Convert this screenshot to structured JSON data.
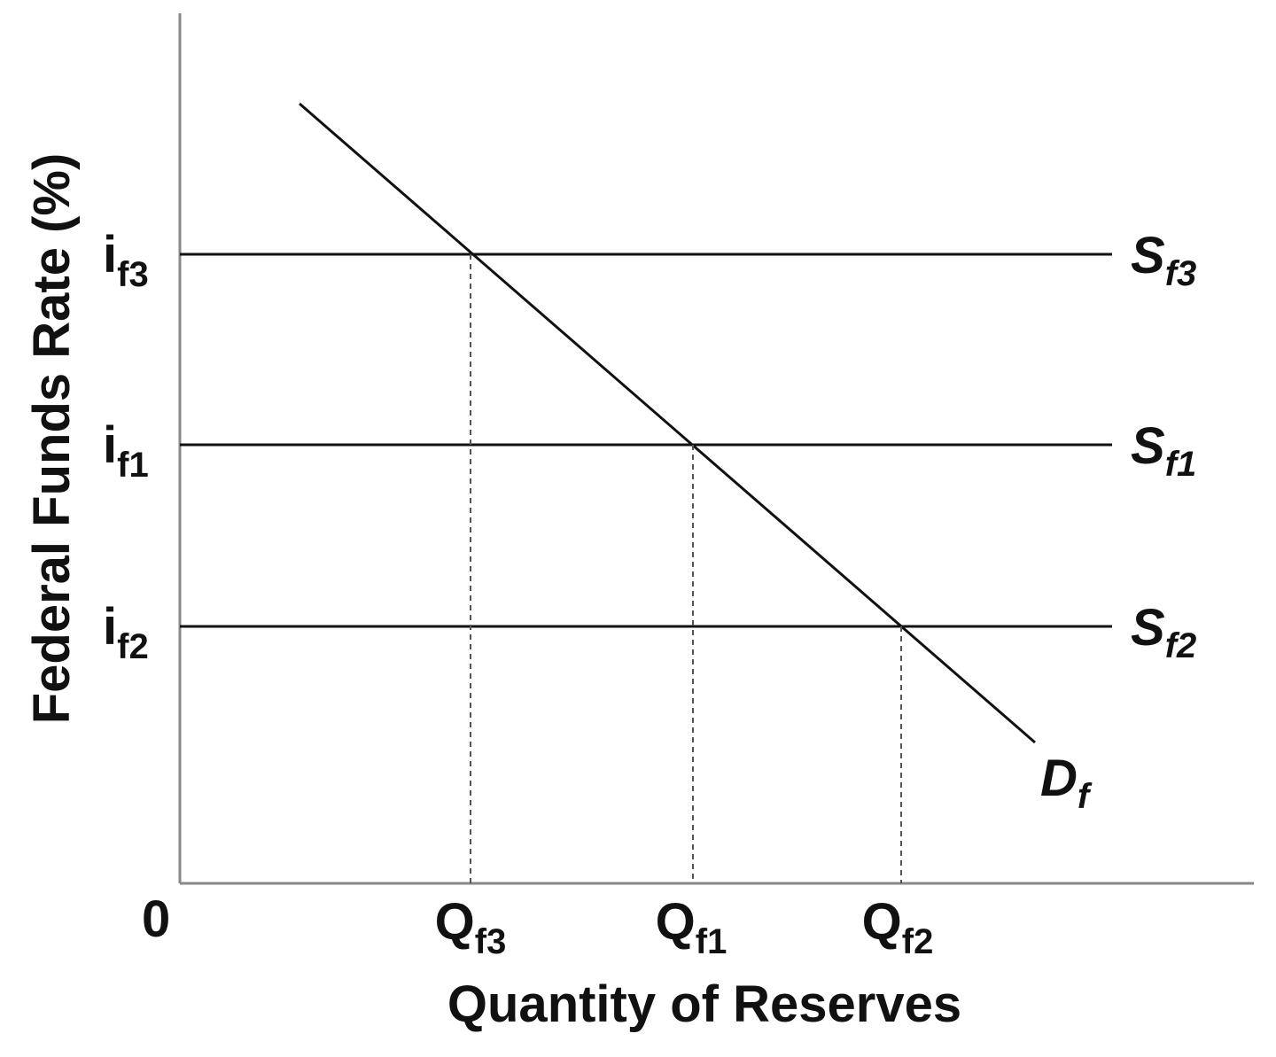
{
  "y_axis": {
    "title": "Federal Funds Rate (%)",
    "origin": "0",
    "labels": [
      {
        "main": "i",
        "sub": "f3"
      },
      {
        "main": "i",
        "sub": "f1"
      },
      {
        "main": "i",
        "sub": "f2"
      }
    ]
  },
  "x_axis": {
    "title": "Quantity of Reserves",
    "labels": [
      {
        "main": "Q",
        "sub": "f3"
      },
      {
        "main": "Q",
        "sub": "f1"
      },
      {
        "main": "Q",
        "sub": "f2"
      }
    ]
  },
  "curves": {
    "supply": [
      {
        "main": "S",
        "sub": "f3"
      },
      {
        "main": "S",
        "sub": "f1"
      },
      {
        "main": "S",
        "sub": "f2"
      }
    ],
    "demand": {
      "main": "D",
      "sub": "f"
    }
  }
}
